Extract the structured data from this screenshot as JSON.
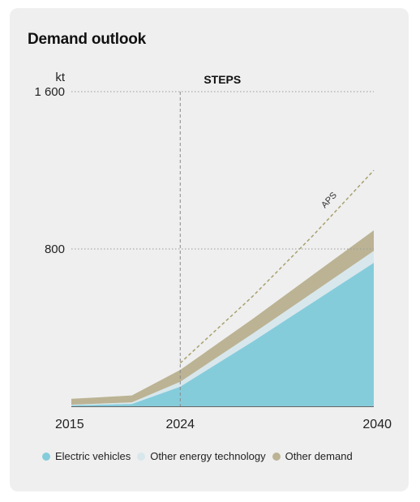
{
  "title": "Demand outlook",
  "chart_data": {
    "type": "area",
    "stacked": true,
    "title": "Demand outlook",
    "scenario_label": "STEPS",
    "ylabel": "kt",
    "ylim": [
      0,
      1600
    ],
    "y_ticks": [
      {
        "value": 800,
        "label": "800"
      },
      {
        "value": 1600,
        "label": "1 600"
      }
    ],
    "xlim": [
      2015,
      2040
    ],
    "x_ticks": [
      {
        "value": 2015,
        "label": "2015"
      },
      {
        "value": 2024,
        "label": "2024"
      },
      {
        "value": 2040,
        "label": "2040"
      }
    ],
    "vertical_marker": {
      "x": 2024,
      "style": "dashed"
    },
    "grid": "dotted horizontal at labeled ticks",
    "legend_position": "bottom",
    "x": [
      2015,
      2020,
      2024,
      2030,
      2035,
      2040
    ],
    "series": [
      {
        "name": "Electric vehicles",
        "color": "#85ccdb",
        "values": [
          5,
          12,
          100,
          330,
          530,
          730
        ]
      },
      {
        "name": "Other energy technology",
        "color": "#d8e7ec",
        "values": [
          3,
          8,
          25,
          40,
          50,
          60
        ]
      },
      {
        "name": "Other demand",
        "color": "#bbb394",
        "values": [
          30,
          35,
          60,
          75,
          90,
          105
        ]
      }
    ],
    "overlay_series": [
      {
        "name": "APS",
        "style": "dashed",
        "color": "#a8a06e",
        "x": [
          2024,
          2030,
          2035,
          2040
        ],
        "values": [
          220,
          560,
          870,
          1200
        ]
      }
    ]
  }
}
